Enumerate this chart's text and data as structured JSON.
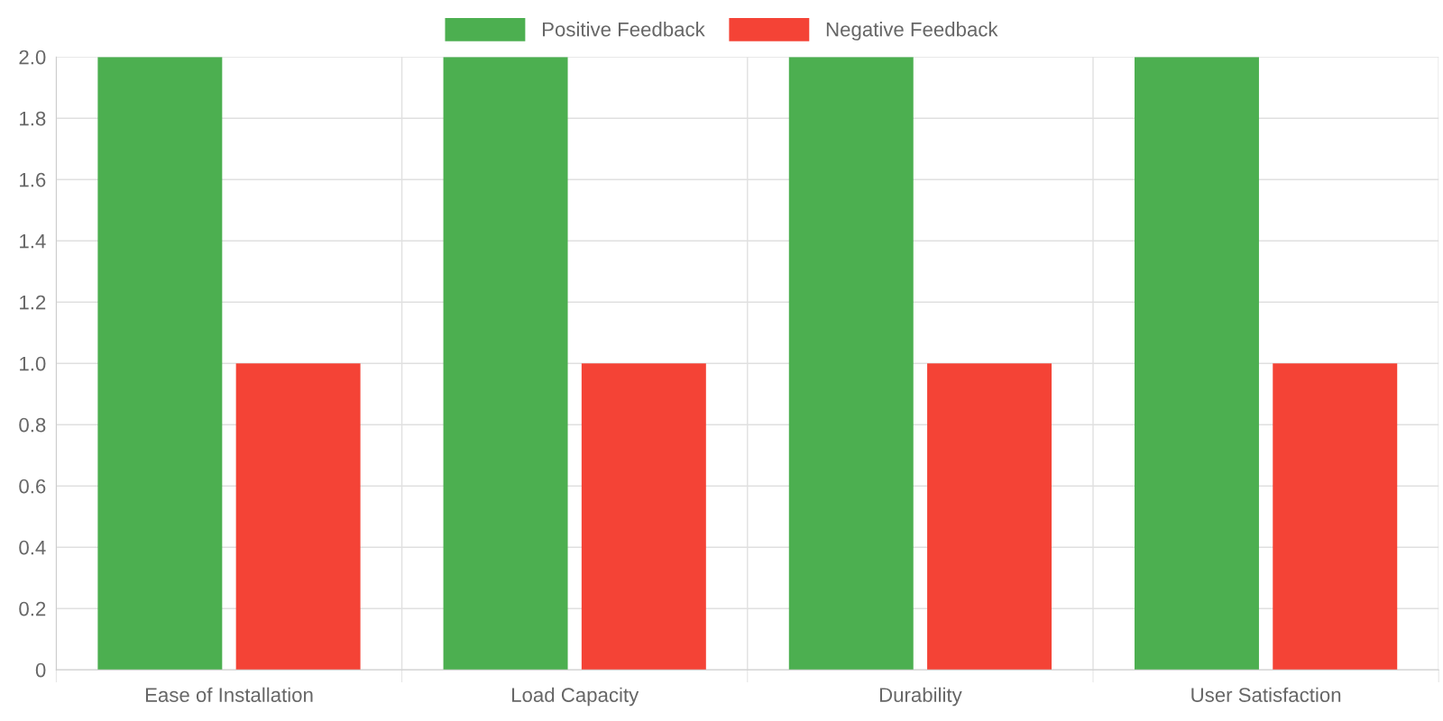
{
  "chart_data": {
    "type": "bar",
    "categories": [
      "Ease of Installation",
      "Load Capacity",
      "Durability",
      "User Satisfaction"
    ],
    "series": [
      {
        "name": "Positive Feedback",
        "color": "#4caf50",
        "values": [
          2,
          2,
          2,
          2
        ]
      },
      {
        "name": "Negative Feedback",
        "color": "#f44336",
        "values": [
          1,
          1,
          1,
          1
        ]
      }
    ],
    "ylim": [
      0,
      2
    ],
    "yticks": [
      0,
      0.2,
      0.4,
      0.6,
      0.8,
      {
        "value": 1,
        "label": "1.0"
      },
      1.2,
      1.4,
      1.6,
      1.8,
      {
        "value": 2,
        "label": "2.0"
      }
    ],
    "grid": true,
    "legend": "top"
  }
}
